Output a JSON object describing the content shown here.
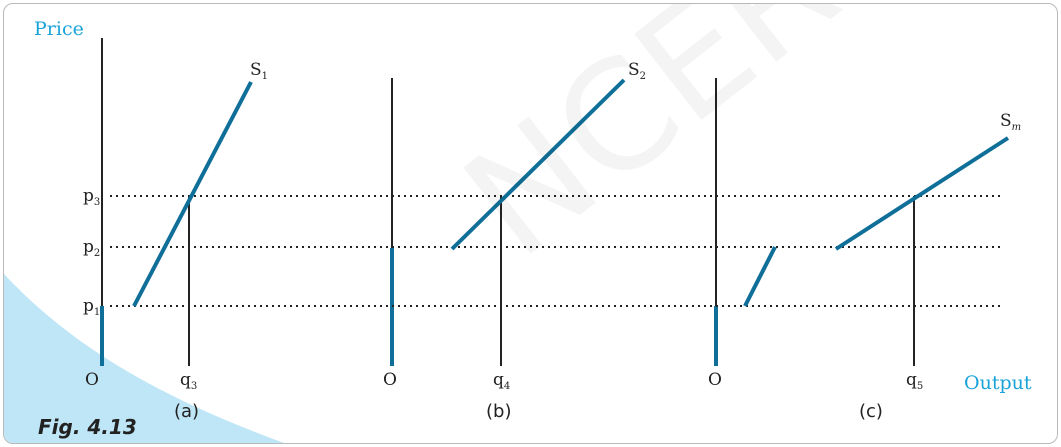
{
  "axes": {
    "y_label": "Price",
    "x_label": "Output",
    "origin_label": "O"
  },
  "prices": [
    {
      "main": "p",
      "sub": "3"
    },
    {
      "main": "p",
      "sub": "2"
    },
    {
      "main": "p",
      "sub": "1"
    }
  ],
  "panels": [
    {
      "label": "(a)",
      "curve": {
        "main": "S",
        "sub": "1"
      },
      "q": {
        "main": "q",
        "sub": "3"
      }
    },
    {
      "label": "(b)",
      "curve": {
        "main": "S",
        "sub": "2"
      },
      "q": {
        "main": "q",
        "sub": "4"
      }
    },
    {
      "label": "(c)",
      "curve": {
        "main": "S",
        "sub": "m"
      },
      "q": {
        "main": "q",
        "sub": "5"
      }
    }
  ],
  "caption": "Fig. 4.13",
  "watermark": "NCERT not to be republished",
  "colors": {
    "accent": "#1aa3d9",
    "curve": "#0f6f98",
    "corner": "#bfe6f7"
  }
}
